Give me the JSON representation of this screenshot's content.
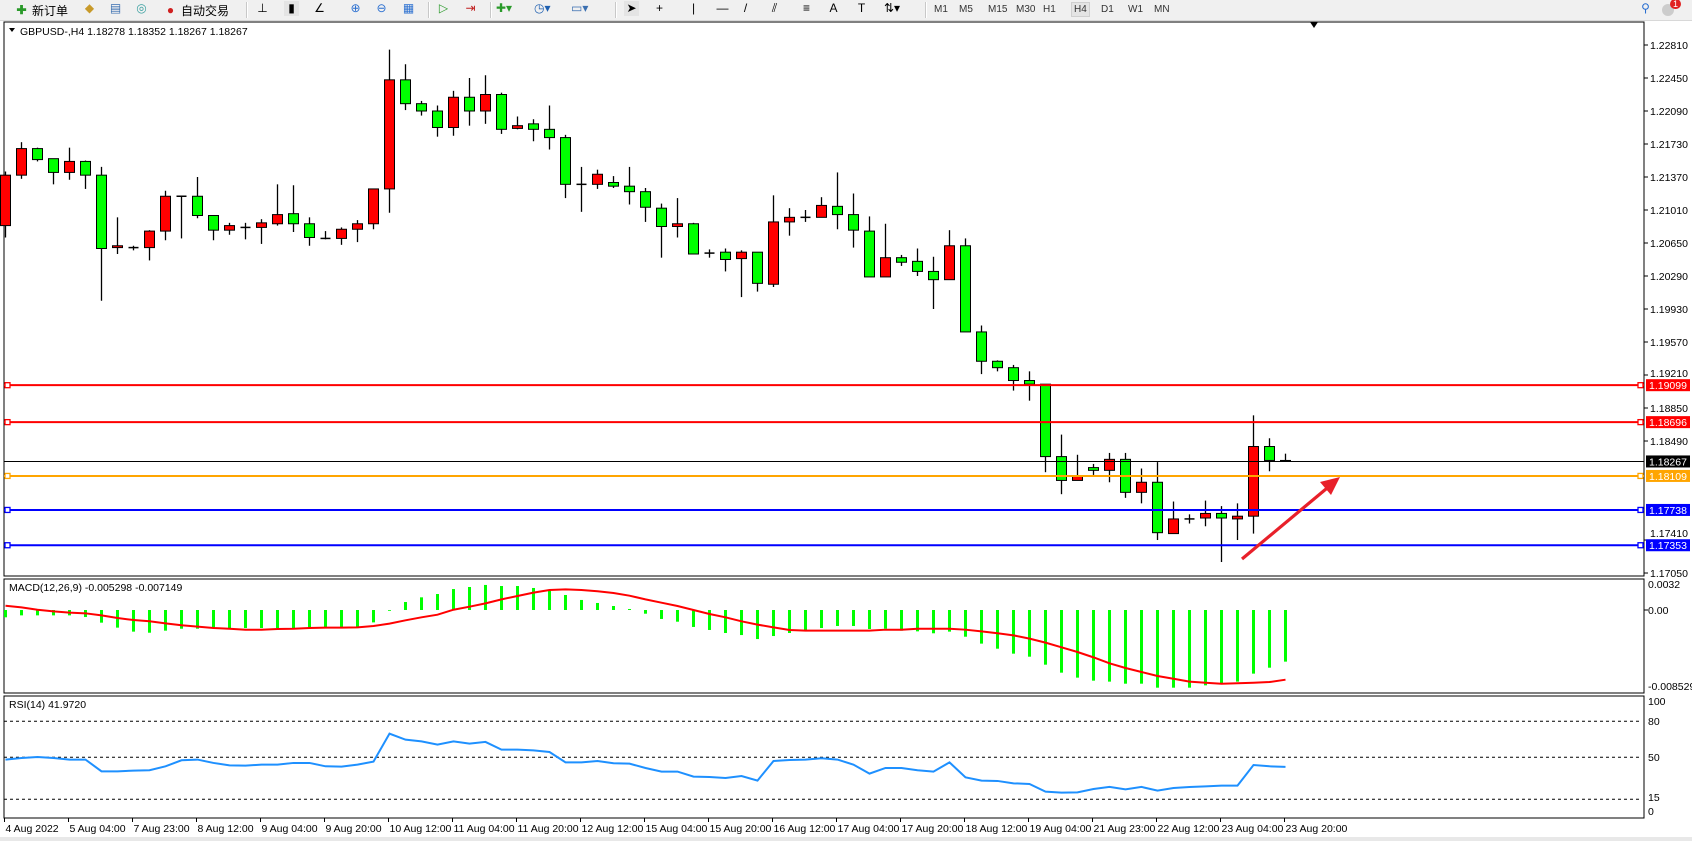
{
  "toolbar": {
    "new_order_label": "新订单",
    "auto_trading_label": "自动交易",
    "timeframes": [
      "M1",
      "M5",
      "M15",
      "M30",
      "H1",
      "H4",
      "D1",
      "W1",
      "MN"
    ],
    "active_timeframe": "H4",
    "notification_count": "1",
    "icons": [
      "new-order-icon",
      "history-folder-icon",
      "market-watch-icon",
      "signals-icon",
      "auto-trading-icon",
      "bar-chart-icon",
      "candlestick-icon",
      "line-chart-icon",
      "zoom-in-icon",
      "zoom-out-icon",
      "tile-windows-icon",
      "chart-shift-icon",
      "auto-scroll-icon",
      "indicators-icon",
      "periods-icon",
      "templates-icon",
      "cursor-icon",
      "crosshair-icon",
      "vertical-line-icon",
      "horizontal-line-icon",
      "trendline-icon",
      "equidistant-channel-icon",
      "fibonacci-icon",
      "text-icon",
      "text-label-icon",
      "arrows-icon",
      "search-icon",
      "notification-icon"
    ],
    "text_tool_label": "A",
    "label_tool_label": "T"
  },
  "colors": {
    "bull_candle": "#ff0000",
    "bear_candle": "#00ff00",
    "candle_outline": "#000000",
    "macd_histogram": "#00ff00",
    "macd_signal": "#ff0000",
    "rsi_line": "#1e90ff",
    "arrow": "#e8202a"
  },
  "chart_data": [
    {
      "type": "candlestick",
      "title": "GBPUSD-,H4  1.18278 1.18352 1.18267 1.18267",
      "symbol": "GBPUSD-",
      "timeframe": "H4",
      "ohlc_header": [
        "1.18278",
        "1.18352",
        "1.18267",
        "1.18267"
      ],
      "ylim": [
        1.17017,
        1.2306
      ],
      "y_ticks": [
        "1.22810",
        "1.22450",
        "1.22090",
        "1.21730",
        "1.21370",
        "1.21010",
        "1.20650",
        "1.20290",
        "1.19930",
        "1.19570",
        "1.19210",
        "1.18850",
        "1.18490",
        "1.17410",
        "1.17050"
      ],
      "x_tick_labels": [
        "4 Aug 2022",
        "5 Aug 04:00",
        "7 Aug 23:00",
        "8 Aug 12:00",
        "9 Aug 04:00",
        "9 Aug 20:00",
        "10 Aug 12:00",
        "11 Aug 04:00",
        "11 Aug 20:00",
        "12 Aug 12:00",
        "15 Aug 04:00",
        "15 Aug 20:00",
        "16 Aug 12:00",
        "17 Aug 04:00",
        "17 Aug 20:00",
        "18 Aug 12:00",
        "19 Aug 04:00",
        "21 Aug 23:00",
        "22 Aug 12:00",
        "23 Aug 04:00",
        "23 Aug 20:00"
      ],
      "x_tick_every_bars": 4,
      "ohlc": [
        [
          1.2084,
          1.2143,
          1.2071,
          1.2139
        ],
        [
          1.2139,
          1.2175,
          1.2135,
          1.2168
        ],
        [
          1.2168,
          1.2169,
          1.2154,
          1.2156
        ],
        [
          1.2157,
          1.2157,
          1.2129,
          1.2142
        ],
        [
          1.2142,
          1.2169,
          1.2134,
          1.2154
        ],
        [
          1.2154,
          1.2155,
          1.2124,
          1.2139
        ],
        [
          1.2139,
          1.2148,
          1.2002,
          1.2059
        ],
        [
          1.206,
          1.2093,
          1.2053,
          1.2062
        ],
        [
          1.206,
          1.2062,
          1.2057,
          1.206
        ],
        [
          1.206,
          1.2079,
          1.2046,
          1.2078
        ],
        [
          1.2078,
          1.2122,
          1.2068,
          1.2116
        ],
        [
          1.2116,
          1.2116,
          1.207,
          1.2116
        ],
        [
          1.2116,
          1.2137,
          1.2092,
          1.2095
        ],
        [
          1.2095,
          1.2095,
          1.2068,
          1.2079
        ],
        [
          1.2079,
          1.2087,
          1.2074,
          1.2084
        ],
        [
          1.2082,
          1.2087,
          1.2069,
          1.2082
        ],
        [
          1.2082,
          1.2091,
          1.2064,
          1.2087
        ],
        [
          1.2086,
          1.2129,
          1.2084,
          1.2096
        ],
        [
          1.2097,
          1.2128,
          1.2077,
          1.2086
        ],
        [
          1.2086,
          1.2093,
          1.2062,
          1.2071
        ],
        [
          1.207,
          1.2078,
          1.2069,
          1.207
        ],
        [
          1.207,
          1.2082,
          1.2063,
          1.208
        ],
        [
          1.208,
          1.209,
          1.2066,
          1.2086
        ],
        [
          1.2086,
          1.2124,
          1.208,
          1.2124
        ],
        [
          1.2124,
          1.2276,
          1.2098,
          1.2243
        ],
        [
          1.2243,
          1.226,
          1.221,
          1.2217
        ],
        [
          1.2217,
          1.222,
          1.2204,
          1.2209
        ],
        [
          1.2209,
          1.2215,
          1.2181,
          1.2191
        ],
        [
          1.2191,
          1.2231,
          1.2182,
          1.2224
        ],
        [
          1.2224,
          1.2245,
          1.2193,
          1.2209
        ],
        [
          1.2209,
          1.2248,
          1.2195,
          1.2227
        ],
        [
          1.2227,
          1.2229,
          1.2184,
          1.2189
        ],
        [
          1.219,
          1.2203,
          1.2189,
          1.2193
        ],
        [
          1.2195,
          1.22,
          1.2176,
          1.2189
        ],
        [
          1.2189,
          1.2215,
          1.2167,
          1.218
        ],
        [
          1.218,
          1.2183,
          1.2114,
          1.2129
        ],
        [
          1.2129,
          1.2148,
          1.2099,
          1.2129
        ],
        [
          1.2129,
          1.2145,
          1.2124,
          1.214
        ],
        [
          1.2131,
          1.2138,
          1.2125,
          1.2127
        ],
        [
          1.2127,
          1.2148,
          1.2107,
          1.2121
        ],
        [
          1.2121,
          1.2125,
          1.2088,
          1.2104
        ],
        [
          1.2103,
          1.2108,
          1.2049,
          1.2083
        ],
        [
          1.2083,
          1.2114,
          1.2071,
          1.2086
        ],
        [
          1.2086,
          1.2087,
          1.2053,
          1.2053
        ],
        [
          1.2054,
          1.2058,
          1.2049,
          1.2054
        ],
        [
          1.2055,
          1.2059,
          1.2034,
          1.2047
        ],
        [
          1.2048,
          1.2057,
          1.2006,
          1.2055
        ],
        [
          1.2055,
          1.2055,
          1.2012,
          1.2021
        ],
        [
          1.202,
          1.2117,
          1.2017,
          1.2088
        ],
        [
          1.2088,
          1.2103,
          1.2073,
          1.2093
        ],
        [
          1.2093,
          1.2101,
          1.2088,
          1.2093
        ],
        [
          1.2093,
          1.2115,
          1.2093,
          1.2106
        ],
        [
          1.2105,
          1.2142,
          1.208,
          1.2096
        ],
        [
          1.2096,
          1.2119,
          1.206,
          1.2079
        ],
        [
          1.2078,
          1.2094,
          1.2028,
          1.2028
        ],
        [
          1.2028,
          1.2086,
          1.2028,
          1.2049
        ],
        [
          1.2049,
          1.2052,
          1.204,
          1.2044
        ],
        [
          1.2045,
          1.2059,
          1.2029,
          1.2034
        ],
        [
          1.2034,
          1.205,
          1.1993,
          1.2025
        ],
        [
          1.2025,
          1.2079,
          1.2025,
          1.2062
        ],
        [
          1.2062,
          1.207,
          1.1968,
          1.1968
        ],
        [
          1.1968,
          1.1975,
          1.1922,
          1.1936
        ],
        [
          1.1936,
          1.1937,
          1.1925,
          1.1929
        ],
        [
          1.1929,
          1.1932,
          1.1904,
          1.1915
        ],
        [
          1.1915,
          1.1925,
          1.1893,
          1.1911
        ],
        [
          1.1911,
          1.1911,
          1.1815,
          1.1832
        ],
        [
          1.1832,
          1.1856,
          1.1791,
          1.1806
        ],
        [
          1.1806,
          1.1834,
          1.1806,
          1.1811
        ],
        [
          1.182,
          1.1824,
          1.1812,
          1.1817
        ],
        [
          1.1817,
          1.1836,
          1.1804,
          1.1829
        ],
        [
          1.1829,
          1.1836,
          1.1787,
          1.1793
        ],
        [
          1.1793,
          1.1819,
          1.1781,
          1.1804
        ],
        [
          1.1804,
          1.1826,
          1.1741,
          1.1749
        ],
        [
          1.1748,
          1.1783,
          1.1748,
          1.1764
        ],
        [
          1.1764,
          1.1769,
          1.1759,
          1.1764
        ],
        [
          1.1765,
          1.1784,
          1.1756,
          1.177
        ],
        [
          1.177,
          1.1778,
          1.1717,
          1.1765
        ],
        [
          1.1764,
          1.1781,
          1.1741,
          1.1767
        ],
        [
          1.1767,
          1.1877,
          1.1748,
          1.1843
        ],
        [
          1.1843,
          1.1852,
          1.1816,
          1.18278
        ],
        [
          1.18278,
          1.18352,
          1.18267,
          1.18267
        ]
      ],
      "current_price": {
        "value": 1.18267,
        "label": "1.18267",
        "color": "#000000"
      },
      "horizontal_levels": [
        {
          "value": 1.19099,
          "label": "1.19099",
          "color": "#ff0000"
        },
        {
          "value": 1.18696,
          "label": "1.18696",
          "color": "#ff0000"
        },
        {
          "value": 1.18109,
          "label": "1.18109",
          "color": "#ffa500"
        },
        {
          "value": 1.17738,
          "label": "1.17738",
          "color": "#0000ff"
        },
        {
          "value": 1.17353,
          "label": "1.17353",
          "color": "#0000ff"
        }
      ],
      "annotations": [
        {
          "type": "arrow",
          "color": "#e8202a",
          "direction": "up-right"
        }
      ]
    },
    {
      "type": "bar+line",
      "title": "MACD(12,26,9) -0.005298 -0.007149",
      "ylim": [
        -0.00855,
        0.00318
      ],
      "y_ticks": [
        "0.0032",
        "0.00",
        "-0.008529"
      ],
      "histogram": [
        -0.00075,
        -0.00055,
        -0.00055,
        -0.00055,
        -0.00055,
        -0.00072,
        -0.0013,
        -0.00181,
        -0.00222,
        -0.00233,
        -0.00212,
        -0.00192,
        -0.00192,
        -0.00185,
        -0.00185,
        -0.00185,
        -0.00185,
        -0.00185,
        -0.00185,
        -0.00185,
        -0.00185,
        -0.00185,
        -0.00185,
        -0.00127,
        -3e-05,
        0.00082,
        0.0013,
        0.00164,
        0.00215,
        0.00236,
        0.00257,
        0.00246,
        0.00246,
        0.00226,
        0.00209,
        0.00154,
        0.00103,
        0.00072,
        0.00041,
        0.0001,
        -0.00038,
        -0.00092,
        -0.0012,
        -0.00174,
        -0.00205,
        -0.00236,
        -0.00257,
        -0.00298,
        -0.00267,
        -0.00236,
        -0.00209,
        -0.00185,
        -0.00164,
        -0.00164,
        -0.00195,
        -0.00192,
        -0.00212,
        -0.00219,
        -0.00239,
        -0.00222,
        -0.00274,
        -0.00345,
        -0.00397,
        -0.00448,
        -0.00479,
        -0.00561,
        -0.00643,
        -0.00694,
        -0.00725,
        -0.00735,
        -0.00756,
        -0.00756,
        -0.00797,
        -0.00797,
        -0.00797,
        -0.00773,
        -0.00756,
        -0.00735,
        -0.00653,
        -0.00592,
        -0.005298
      ],
      "signal": [
        0.00044,
        0.00027,
        3e-05,
        -0.00014,
        -0.00027,
        -0.00034,
        -0.00055,
        -0.00082,
        -0.00103,
        -0.00116,
        -0.00137,
        -0.00157,
        -0.00171,
        -0.00185,
        -0.00192,
        -0.00202,
        -0.00202,
        -0.00195,
        -0.00192,
        -0.00185,
        -0.00181,
        -0.00181,
        -0.00178,
        -0.00164,
        -0.0014,
        -0.00106,
        -0.00075,
        -0.00048,
        3e-05,
        0.00034,
        0.00068,
        0.00109,
        0.00144,
        0.00178,
        0.00205,
        0.00212,
        0.00205,
        0.00192,
        0.00174,
        0.00147,
        0.00109,
        0.00075,
        0.00041,
        0,
        -0.00041,
        -0.00075,
        -0.00116,
        -0.0015,
        -0.00178,
        -0.00205,
        -0.00212,
        -0.00212,
        -0.00212,
        -0.00212,
        -0.00212,
        -0.00202,
        -0.00202,
        -0.00192,
        -0.00192,
        -0.00192,
        -0.00202,
        -0.00219,
        -0.00239,
        -0.0026,
        -0.00294,
        -0.00335,
        -0.00383,
        -0.00431,
        -0.00486,
        -0.00547,
        -0.00595,
        -0.00636,
        -0.00677,
        -0.00705,
        -0.00735,
        -0.00746,
        -0.00756,
        -0.00752,
        -0.00746,
        -0.00739,
        -0.007149
      ]
    },
    {
      "type": "line",
      "title": "RSI(14) 41.9720",
      "ylim": [
        0,
        100
      ],
      "y_ticks": [
        "100",
        "80",
        "50",
        "15",
        "0"
      ],
      "levels": [
        80,
        50,
        15
      ],
      "values": [
        48.1,
        49.4,
        50.3,
        49.4,
        48.1,
        48.1,
        38.3,
        38.3,
        38.9,
        39.2,
        42.5,
        47.5,
        48.1,
        45.3,
        43.3,
        43.1,
        43.9,
        43.9,
        45.3,
        45.3,
        42.5,
        42.2,
        43.9,
        46.4,
        69.7,
        64.7,
        63.3,
        60.6,
        63.3,
        61.4,
        62.8,
        56.4,
        56.4,
        55.8,
        54.4,
        45.8,
        45.8,
        46.9,
        45.0,
        44.7,
        41.1,
        38.1,
        38.1,
        33.9,
        33.6,
        32.8,
        34.4,
        30.6,
        46.9,
        47.8,
        48.1,
        49.2,
        48.1,
        43.9,
        36.4,
        41.1,
        41.1,
        39.2,
        38.1,
        45.8,
        33.3,
        30.6,
        30.3,
        28.3,
        27.8,
        21.4,
        20.6,
        20.8,
        23.6,
        25.3,
        23.3,
        25.3,
        22.2,
        24.4,
        25.3,
        25.8,
        26.4,
        26.4,
        43.6,
        42.5,
        41.972
      ]
    }
  ]
}
